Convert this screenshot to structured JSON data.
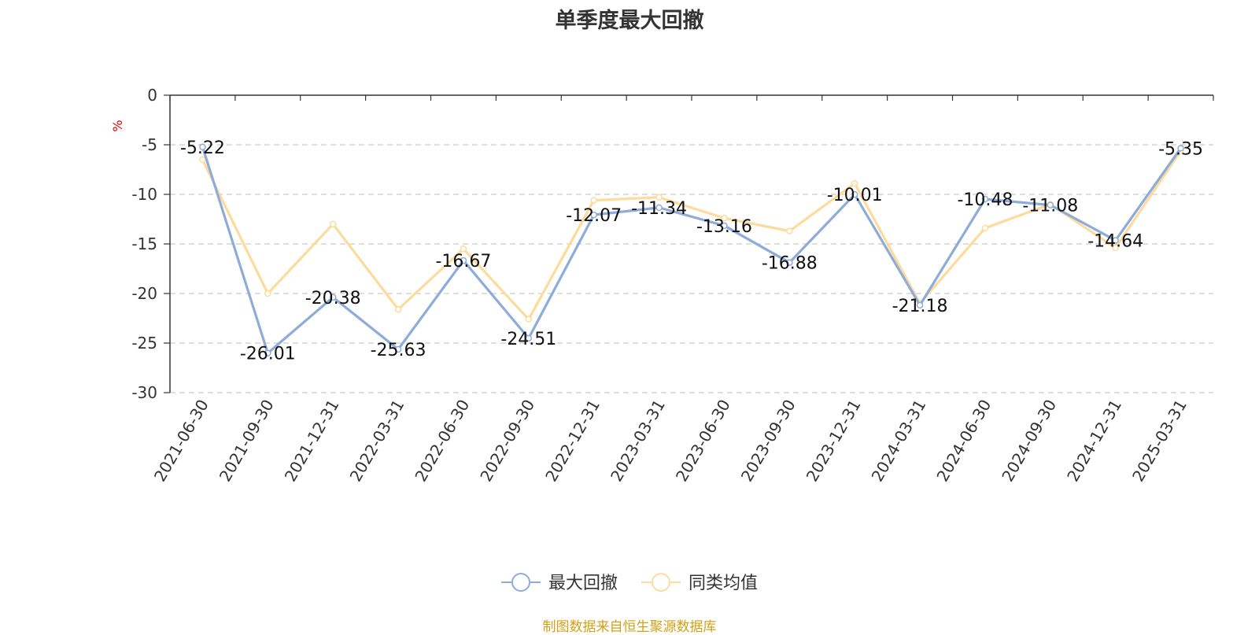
{
  "title": "单季度最大回撤",
  "source_note": "制图数据来自恒生聚源数据库",
  "colors": {
    "series1": "#8eacd9",
    "series2": "#fddb9c",
    "grid": "#cccccc",
    "axis": "#333333",
    "unit": "#e00000"
  },
  "chart_data": {
    "type": "line",
    "title": "单季度最大回撤",
    "ylabel": "%",
    "ylim": [
      -30,
      0
    ],
    "yticks": [
      0,
      -5,
      -10,
      -15,
      -20,
      -25,
      -30
    ],
    "grid": true,
    "legend_position": "bottom-center",
    "categories": [
      "2021-06-30",
      "2021-09-30",
      "2021-12-31",
      "2022-03-31",
      "2022-06-30",
      "2022-09-30",
      "2022-12-31",
      "2023-03-31",
      "2023-06-30",
      "2023-09-30",
      "2023-12-31",
      "2024-03-31",
      "2024-06-30",
      "2024-09-30",
      "2024-12-31",
      "2025-03-31"
    ],
    "series": [
      {
        "name": "最大回撤",
        "values": [
          -5.22,
          -26.01,
          -20.38,
          -25.63,
          -16.67,
          -24.51,
          -12.07,
          -11.34,
          -13.16,
          -16.88,
          -10.01,
          -21.18,
          -10.48,
          -11.08,
          -14.64,
          -5.35
        ],
        "labels": [
          "-5.22",
          "-26.01",
          "-20.38",
          "-25.63",
          "-16.67",
          "-24.51",
          "-12.07",
          "-11.34",
          "-13.16",
          "-16.88",
          "-10.01",
          "-21.18",
          "-10.48",
          "-11.08",
          "-14.64",
          "-5.35"
        ]
      },
      {
        "name": "同类均值",
        "values": [
          -6.5,
          -20.0,
          -13.0,
          -21.6,
          -15.5,
          -22.6,
          -10.6,
          -10.3,
          -12.4,
          -13.7,
          -8.9,
          -21.0,
          -13.4,
          -11.0,
          -15.4,
          -5.6
        ]
      }
    ]
  }
}
